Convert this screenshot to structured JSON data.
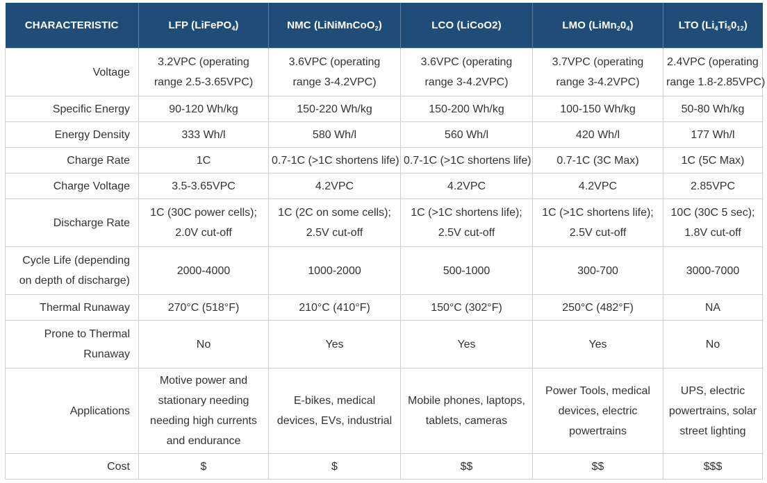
{
  "headers": [
    {
      "text": "CHARACTERISTIC",
      "formula": []
    },
    {
      "text": "LFP",
      "formula": [
        {
          "t": "(LiFePO"
        },
        {
          "s": "4"
        },
        {
          "t": ")"
        }
      ]
    },
    {
      "text": "NMC",
      "formula": [
        {
          "t": "(LiNiMnCoO"
        },
        {
          "s": "2"
        },
        {
          "t": ")"
        }
      ]
    },
    {
      "text": "LCO",
      "formula": [
        {
          "t": "(LiCoO2)"
        }
      ]
    },
    {
      "text": "LMO",
      "formula": [
        {
          "t": "(LiMn"
        },
        {
          "s": "2"
        },
        {
          "t": "0"
        },
        {
          "s": "4"
        },
        {
          "t": ")"
        }
      ]
    },
    {
      "text": "LTO",
      "formula": [
        {
          "t": "(Li"
        },
        {
          "s": "4"
        },
        {
          "t": "Ti"
        },
        {
          "s": "5"
        },
        {
          "t": "0"
        },
        {
          "s": "12"
        },
        {
          "t": ")"
        }
      ]
    }
  ],
  "rows": [
    {
      "label": [
        "Voltage"
      ],
      "cells": [
        [
          "3.2VPC (operating",
          "range 2.5-3.65VPC)"
        ],
        [
          "3.6VPC (operating",
          "range 3-4.2VPC)"
        ],
        [
          "3.6VPC (operating",
          "range 3-4.2VPC)"
        ],
        [
          "3.7VPC (operating",
          "range 3-4.2VPC)"
        ],
        [
          "2.4VPC (operating",
          "range 1.8-2.85VPC)"
        ]
      ]
    },
    {
      "label": [
        "Specific Energy"
      ],
      "cells": [
        [
          "90-120 Wh/kg"
        ],
        [
          "150-220 Wh/kg"
        ],
        [
          "150-200 Wh/kg"
        ],
        [
          "100-150 Wh/kg"
        ],
        [
          "50-80 Wh/kg"
        ]
      ]
    },
    {
      "label": [
        "Energy Density"
      ],
      "cells": [
        [
          "333 Wh/l"
        ],
        [
          "580 Wh/l"
        ],
        [
          "560 Wh/l"
        ],
        [
          "420 Wh/l"
        ],
        [
          "177 Wh/l"
        ]
      ]
    },
    {
      "label": [
        "Charge Rate"
      ],
      "cells": [
        [
          "1C"
        ],
        [
          "0.7-1C (>1C shortens life)"
        ],
        [
          "0.7-1C (>1C shortens life)"
        ],
        [
          "0.7-1C (3C Max)"
        ],
        [
          "1C (5C Max)"
        ]
      ]
    },
    {
      "label": [
        "Charge Voltage"
      ],
      "cells": [
        [
          "3.5-3.65VPC"
        ],
        [
          "4.2VPC"
        ],
        [
          "4.2VPC"
        ],
        [
          "4.2VPC"
        ],
        [
          "2.85VPC"
        ]
      ]
    },
    {
      "label": [
        "Discharge Rate"
      ],
      "cells": [
        [
          "1C (30C power cells);",
          "2.0V cut-off"
        ],
        [
          "1C (2C on some cells);",
          "2.5V cut-off"
        ],
        [
          "1C (>1C shortens life);",
          "2.5V cut-off"
        ],
        [
          "1C (>1C shortens life);",
          "2.5V cut-off"
        ],
        [
          "10C (30C 5 sec);",
          "1.8V cut-off"
        ]
      ]
    },
    {
      "label": [
        "Cycle Life (depending",
        "on depth of discharge)"
      ],
      "cells": [
        [
          "2000-4000"
        ],
        [
          "1000-2000"
        ],
        [
          "500-1000"
        ],
        [
          "300-700"
        ],
        [
          "3000-7000"
        ]
      ]
    },
    {
      "label": [
        "Thermal Runaway"
      ],
      "cells": [
        [
          "270°C (518°F)"
        ],
        [
          "210°C (410°F)"
        ],
        [
          "150°C (302°F)"
        ],
        [
          "250°C (482°F)"
        ],
        [
          "NA"
        ]
      ]
    },
    {
      "label": [
        "Prone to Thermal",
        "Runaway"
      ],
      "cells": [
        [
          "No"
        ],
        [
          "Yes"
        ],
        [
          "Yes"
        ],
        [
          "Yes"
        ],
        [
          "No"
        ]
      ]
    },
    {
      "label": [
        "Applications"
      ],
      "cells": [
        [
          "Motive power and",
          "stationary needing",
          "needing high currents",
          "and endurance"
        ],
        [
          "E-bikes, medical",
          "devices, EVs, industrial"
        ],
        [
          "Mobile phones, laptops,",
          "tablets, cameras"
        ],
        [
          "Power Tools, medical",
          "devices, electric",
          "powertrains"
        ],
        [
          "UPS, electric",
          "powertrains, solar",
          "street lighting"
        ]
      ]
    },
    {
      "label": [
        "Cost"
      ],
      "cells": [
        [
          "$"
        ],
        [
          "$"
        ],
        [
          "$$"
        ],
        [
          "$$"
        ],
        [
          "$$$"
        ]
      ]
    }
  ]
}
